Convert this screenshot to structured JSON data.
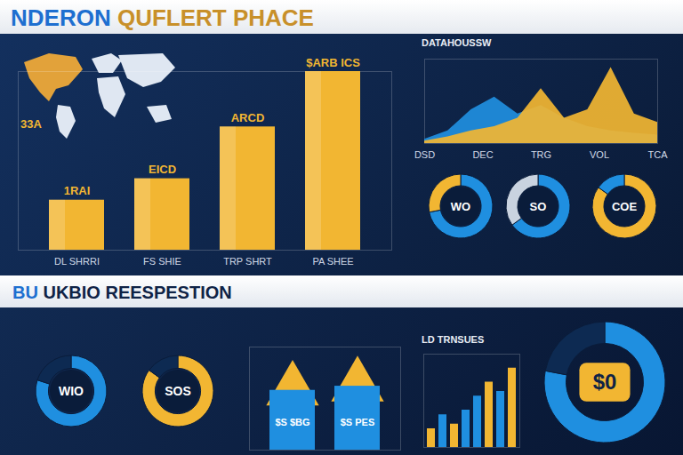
{
  "header": {
    "title": "NDERON QUFLERT PHACE",
    "section_title": "BU UKBIO REESPESTION"
  },
  "map": {
    "label": "33A"
  },
  "chart_data": [
    {
      "type": "bar",
      "categories": [
        "DL SHRRI",
        "FS SHIE",
        "TRP SHRT",
        "PA SHEE"
      ],
      "values": [
        28,
        40,
        69,
        100
      ],
      "annotations": [
        "1RAI",
        "EICD",
        "ARCD",
        "$ARB ICS"
      ],
      "color": "#f2b632",
      "ylim": [
        0,
        100
      ],
      "tick_labels": "x",
      "grid": false
    },
    {
      "type": "area",
      "title": "DATAHOUSSW",
      "x": [
        0,
        0.4,
        0.8,
        1.2,
        1.6,
        2,
        2.4,
        2.8,
        3.2,
        3.6,
        4
      ],
      "series": [
        {
          "color": "#1f8fe0",
          "values": [
            5,
            15,
            40,
            55,
            35,
            45,
            30,
            20,
            15,
            12,
            10
          ]
        },
        {
          "color": "#f2b632",
          "values": [
            3,
            8,
            15,
            20,
            30,
            65,
            30,
            40,
            90,
            35,
            25
          ]
        }
      ],
      "xlim": [
        0,
        4
      ],
      "xticks": [
        {
          "value": 0,
          "label": "DSD"
        },
        {
          "value": 1,
          "label": "DEC"
        },
        {
          "value": 2,
          "label": "TRG"
        },
        {
          "value": 3,
          "label": "VOL"
        },
        {
          "value": 4,
          "label": "TCA"
        }
      ],
      "ylim": [
        0,
        100
      ],
      "tick_labels": "x"
    },
    {
      "type": "pie",
      "title": "WO",
      "values": [
        72,
        28
      ],
      "colors": [
        "#1f8fe0",
        "#f2b632"
      ]
    },
    {
      "type": "pie",
      "title": "SO",
      "values": [
        65,
        35
      ],
      "colors": [
        "#1f8fe0",
        "#c9d3e0"
      ]
    },
    {
      "type": "pie",
      "title": "COE",
      "values": [
        85,
        15
      ],
      "colors": [
        "#f2b632",
        "#1f8fe0"
      ]
    },
    {
      "type": "pie",
      "title": "WIO",
      "values": [
        80,
        20
      ],
      "colors": [
        "#1f8fe0",
        "#0d2a52"
      ]
    },
    {
      "type": "pie",
      "title": "SOS",
      "values": [
        85,
        15
      ],
      "colors": [
        "#f2b632",
        "#0d2a52"
      ]
    },
    {
      "type": "bar",
      "categories": [
        null,
        null
      ],
      "values": [
        58,
        62
      ],
      "annotations": [
        "$S $BG",
        "$S PES"
      ],
      "color": "#1f8fe0",
      "ylim": [
        0,
        100
      ],
      "tick_labels": false
    },
    {
      "type": "bar",
      "title": "LD TRNSUES",
      "categories": [
        null,
        null,
        null,
        null,
        null,
        null,
        null,
        null
      ],
      "values": [
        20,
        35,
        25,
        40,
        55,
        70,
        60,
        85
      ],
      "colors": [
        "#f2b632",
        "#1f8fe0",
        "#f2b632",
        "#1f8fe0",
        "#1f8fe0",
        "#f2b632",
        "#1f8fe0",
        "#f2b632"
      ],
      "ylim": [
        0,
        100
      ],
      "tick_labels": false
    },
    {
      "type": "pie",
      "title": "$0",
      "values": [
        78,
        22
      ],
      "colors": [
        "#1f8fe0",
        "#0d2a52"
      ]
    }
  ]
}
